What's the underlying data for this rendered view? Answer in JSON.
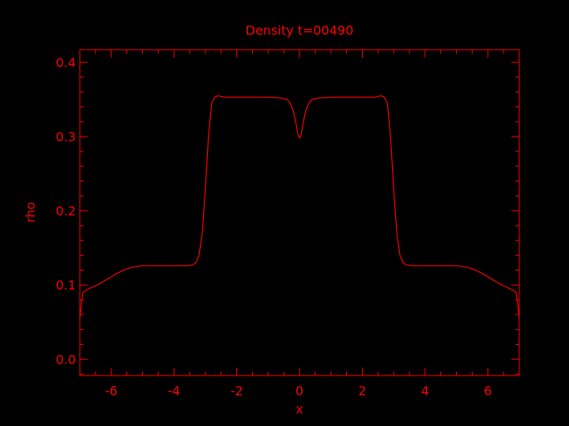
{
  "chart_data": {
    "type": "line",
    "title": "Density t=00490",
    "xlabel": "x",
    "ylabel": "rho",
    "xlim": [
      -7.0,
      7.0
    ],
    "ylim": [
      -0.022,
      0.417
    ],
    "grid": false,
    "legend": "none",
    "colors": {
      "background": "#000000",
      "foreground": "#ff0000"
    },
    "x_ticks": [
      {
        "value": -6,
        "label": "-6"
      },
      {
        "value": -4,
        "label": "-4"
      },
      {
        "value": -2,
        "label": "-2"
      },
      {
        "value": 0,
        "label": "0"
      },
      {
        "value": 2,
        "label": "2"
      },
      {
        "value": 4,
        "label": "4"
      },
      {
        "value": 6,
        "label": "6"
      }
    ],
    "y_ticks": [
      {
        "value": 0.0,
        "label": "0.0"
      },
      {
        "value": 0.1,
        "label": "0.1"
      },
      {
        "value": 0.2,
        "label": "0.2"
      },
      {
        "value": 0.3,
        "label": "0.3"
      },
      {
        "value": 0.4,
        "label": "0.4"
      }
    ],
    "series": [
      {
        "x": [
          -7.0,
          -6.95,
          -6.9,
          -6.8,
          -6.6,
          -6.4,
          -6.2,
          -6.0,
          -5.8,
          -5.6,
          -5.4,
          -5.2,
          -5.0,
          -4.8,
          -4.5,
          -4.0,
          -3.6,
          -3.4,
          -3.3,
          -3.2,
          -3.1,
          -3.0,
          -2.9,
          -2.8,
          -2.7,
          -2.6,
          -2.5,
          -2.4,
          -2.0,
          -1.5,
          -1.0,
          -0.6,
          -0.4,
          -0.3,
          -0.2,
          -0.1,
          -0.05,
          0.0,
          0.05,
          0.1,
          0.2,
          0.3,
          0.4,
          0.6,
          1.0,
          1.5,
          2.0,
          2.4,
          2.5,
          2.6,
          2.7,
          2.8,
          2.9,
          3.0,
          3.1,
          3.2,
          3.3,
          3.4,
          3.6,
          4.0,
          4.5,
          4.8,
          5.0,
          5.2,
          5.4,
          5.6,
          5.8,
          6.0,
          6.2,
          6.4,
          6.6,
          6.8,
          6.9,
          6.95,
          7.0
        ],
        "y": [
          0.055,
          0.075,
          0.09,
          0.093,
          0.097,
          0.101,
          0.106,
          0.111,
          0.116,
          0.12,
          0.123,
          0.125,
          0.126,
          0.126,
          0.126,
          0.126,
          0.126,
          0.127,
          0.13,
          0.14,
          0.17,
          0.23,
          0.3,
          0.345,
          0.353,
          0.355,
          0.354,
          0.353,
          0.353,
          0.353,
          0.353,
          0.352,
          0.35,
          0.345,
          0.335,
          0.315,
          0.302,
          0.298,
          0.302,
          0.315,
          0.335,
          0.345,
          0.35,
          0.352,
          0.353,
          0.353,
          0.353,
          0.353,
          0.354,
          0.355,
          0.353,
          0.345,
          0.3,
          0.23,
          0.17,
          0.14,
          0.13,
          0.127,
          0.126,
          0.126,
          0.126,
          0.126,
          0.126,
          0.125,
          0.123,
          0.12,
          0.116,
          0.111,
          0.106,
          0.101,
          0.097,
          0.093,
          0.09,
          0.075,
          0.055
        ]
      }
    ]
  }
}
